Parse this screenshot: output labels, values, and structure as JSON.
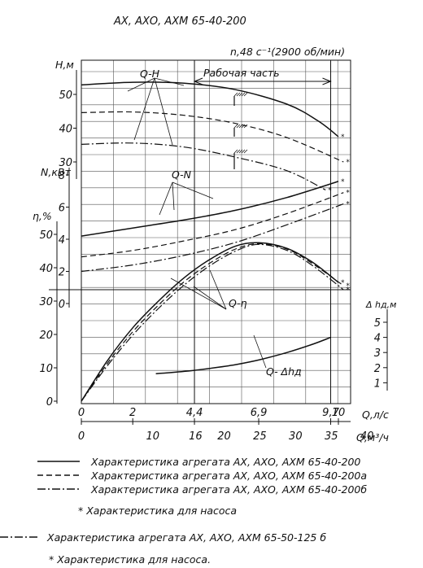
{
  "title": "АХ, АХО, АХМ 65-40-200",
  "speed_label": "n,48 с⁻¹(2900 об/мин)",
  "work_zone_label": "Рабочая часть",
  "curve_labels": {
    "qh": "Q-H",
    "qn": "Q-N",
    "qeta": "Q-η",
    "qdh": "Q- Δhд"
  },
  "chart_data": {
    "type": "line",
    "x_axes": [
      {
        "label": "Q,л/с",
        "range": [
          0,
          10.4
        ],
        "ticks": [
          0,
          2,
          4.4,
          6.9,
          9.7,
          10
        ],
        "tick_labels": [
          "0",
          "2",
          "4,4",
          "6,9",
          "9,7",
          "10"
        ]
      },
      {
        "label": "Q,м³/ч",
        "range": [
          0,
          37.44
        ],
        "ticks": [
          0,
          10,
          16,
          20,
          25,
          30,
          35,
          40
        ],
        "tick_labels": [
          "0",
          "10",
          "16",
          "20",
          "25",
          "30",
          "35",
          "40"
        ]
      }
    ],
    "y_axes": [
      {
        "id": "H",
        "label": "H,м",
        "range": [
          0,
          54
        ],
        "ticks": [
          30,
          40,
          50
        ]
      },
      {
        "id": "N",
        "label": "N,кВт",
        "range": [
          0,
          8
        ],
        "ticks": [
          0,
          2,
          4,
          6,
          8
        ]
      },
      {
        "id": "eta",
        "label": "η,%",
        "range": [
          0,
          60
        ],
        "ticks": [
          0,
          10,
          20,
          30,
          40,
          50
        ]
      },
      {
        "id": "dh",
        "label": "Δ hд,м",
        "range": [
          0,
          5
        ],
        "ticks": [
          1,
          2,
          3,
          4,
          5
        ]
      }
    ],
    "grid": true,
    "series": [
      {
        "name": "Характеристика агрегата АХ, АХО, АХМ 65-40-200",
        "style": "solid",
        "curve": "Q-H",
        "axis": "H",
        "x": [
          0,
          2,
          4,
          6,
          8,
          9.2,
          10.0
        ],
        "y": [
          52.8,
          53.6,
          53.3,
          51.4,
          47.1,
          42.2,
          37.5
        ]
      },
      {
        "name": "Характеристика агрегата АХ, АХО, АХМ 65-40-200а",
        "style": "dashed",
        "curve": "Q-H",
        "axis": "H",
        "x": [
          0,
          2,
          4,
          6,
          8,
          10.2
        ],
        "y": [
          44.6,
          44.8,
          43.8,
          41.4,
          37.2,
          30.0
        ]
      },
      {
        "name": "Характеристика агрегата АХ, АХО, АХМ 65-40-200б",
        "style": "dashdot",
        "curve": "Q-H",
        "axis": "H",
        "x": [
          0,
          2,
          4,
          6,
          8,
          9.5
        ],
        "y": [
          35.2,
          35.6,
          34.4,
          31.4,
          27.4,
          21.7
        ]
      },
      {
        "name": "Характеристика агрегата АХ, АХО, АХМ 65-40-200",
        "style": "solid",
        "curve": "Q-N",
        "axis": "N",
        "x": [
          0,
          2,
          4,
          6,
          8,
          10.0
        ],
        "y": [
          4.2,
          4.7,
          5.2,
          5.8,
          6.6,
          7.6
        ]
      },
      {
        "name": "Характеристика агрегата АХ, АХО, АХМ 65-40-200а",
        "style": "dashed",
        "curve": "Q-N",
        "axis": "N",
        "x": [
          0,
          2,
          4,
          6,
          8,
          10.2
        ],
        "y": [
          2.9,
          3.3,
          3.9,
          4.6,
          5.6,
          6.9
        ]
      },
      {
        "name": "Характеристика агрегата АХ, АХО, АХМ 65-40-200б",
        "style": "dashdot",
        "curve": "Q-N",
        "axis": "N",
        "x": [
          0,
          2,
          4,
          6,
          8,
          10.2
        ],
        "y": [
          2.0,
          2.4,
          3.0,
          3.8,
          4.9,
          6.2
        ]
      },
      {
        "name": "Характеристика агрегата АХ, АХО, АХМ 65-40-200",
        "style": "solid",
        "curve": "Q-η",
        "axis": "eta",
        "x": [
          0,
          1,
          2,
          3,
          4,
          5,
          6,
          6.9,
          8,
          9,
          10.0
        ],
        "y": [
          0,
          12,
          22,
          30,
          37,
          42.5,
          46.5,
          47.5,
          45.8,
          41.6,
          35.6
        ]
      },
      {
        "name": "Характеристика агрегата АХ, АХО, АХМ 65-40-200а",
        "style": "dashed",
        "curve": "Q-η",
        "axis": "eta",
        "x": [
          0,
          1,
          2,
          3,
          4,
          5,
          6,
          6.9,
          8,
          9,
          10.2
        ],
        "y": [
          0,
          11.2,
          20.8,
          28.8,
          35.8,
          41.4,
          45.6,
          47.2,
          45.6,
          41.2,
          34.6
        ]
      },
      {
        "name": "Характеристика агрегата АХ, АХО, АХМ 65-40-200б",
        "style": "dashdot",
        "curve": "Q-η",
        "axis": "eta",
        "x": [
          0,
          1,
          2,
          3,
          4,
          5,
          6,
          6.9,
          8,
          9,
          10.2
        ],
        "y": [
          0,
          10.5,
          19.8,
          27.8,
          34.8,
          40.6,
          45.0,
          47.0,
          45.2,
          40.6,
          33.4
        ]
      },
      {
        "name": "",
        "style": "solid",
        "curve": "Q-Δhд",
        "axis": "dh",
        "x": [
          2.9,
          4,
          5,
          6,
          7,
          8,
          9,
          9.7
        ],
        "y": [
          1.6,
          1.75,
          1.95,
          2.2,
          2.55,
          3.0,
          3.55,
          4.0
        ]
      }
    ],
    "legend_placement": "bottom"
  },
  "legend": [
    {
      "style": "solid",
      "label": "Характеристика агрегата АХ, АХО, АХМ 65-40-200"
    },
    {
      "style": "dashed",
      "label": "Характеристика агрегата АХ, АХО, АХМ 65-40-200а"
    },
    {
      "style": "dashdot",
      "label": "Характеристика агрегата АХ, АХО, АХМ 65-40-200б"
    }
  ],
  "footnote1": "* Характеристика для насоса",
  "legend_extra": {
    "style": "dashdot",
    "label": "Характеристика агрегата АХ, АХО, АХМ 65-50-125 б"
  },
  "footnote2": "* Характеристика для насоса."
}
